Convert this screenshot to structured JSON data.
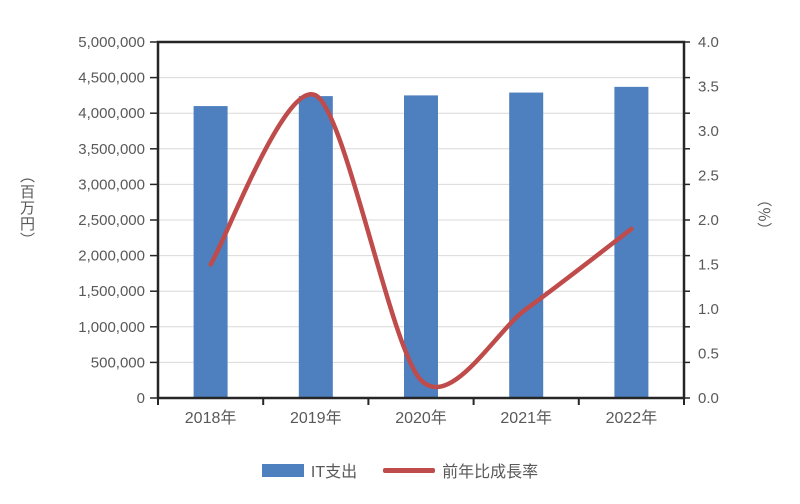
{
  "chart_data": {
    "type": "bar+line combo",
    "categories": [
      "2018年",
      "2019年",
      "2020年",
      "2021年",
      "2022年"
    ],
    "series": [
      {
        "name": "IT支出",
        "type": "bar",
        "axis": "left",
        "values": [
          4100000,
          4240000,
          4250000,
          4290000,
          4370000
        ],
        "color": "#4e7fbf"
      },
      {
        "name": "前年比成長率",
        "type": "line",
        "axis": "right",
        "values": [
          1.5,
          3.4,
          0.2,
          1.0,
          1.9
        ],
        "color": "#bf4b4b"
      }
    ],
    "left_axis": {
      "title": "（百万円）",
      "min": 0,
      "max": 5000000,
      "step": 500000,
      "tick_labels": [
        "0",
        "500,000",
        "1,000,000",
        "1,500,000",
        "2,000,000",
        "2,500,000",
        "3,000,000",
        "3,500,000",
        "4,000,000",
        "4,500,000",
        "5,000,000"
      ]
    },
    "right_axis": {
      "title": "（％）",
      "min": 0,
      "max": 4,
      "step": 0.5,
      "tick_labels": [
        "0.0",
        "0.5",
        "1.0",
        "1.5",
        "2.0",
        "2.5",
        "3.0",
        "3.5",
        "4.0"
      ]
    },
    "grid": true,
    "legend_position": "bottom",
    "colors": {
      "grid": "#d9d9d9",
      "plot_border": "#262626",
      "tick_text": "#595959"
    }
  }
}
